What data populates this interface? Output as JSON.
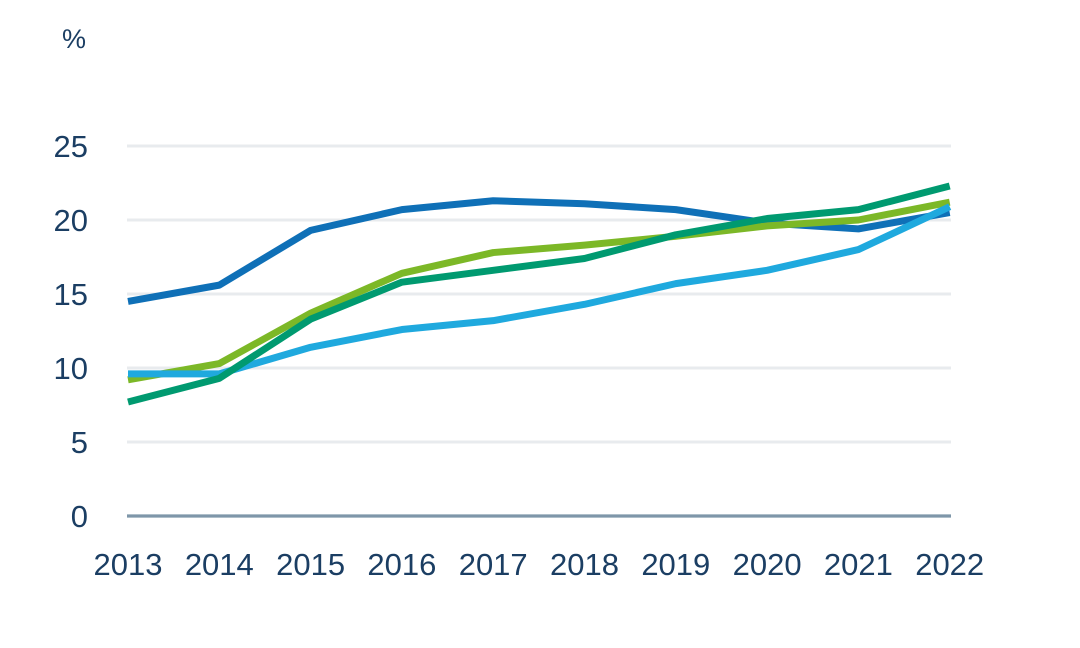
{
  "colors": {
    "axis_label": "#1b3e63",
    "gridline": "#e8ebee",
    "baseline": "#7e96a9",
    "background": "#ffffff"
  },
  "chart_data": {
    "type": "line",
    "title": "",
    "xlabel": "",
    "ylabel": "%",
    "x": [
      "2013",
      "2014",
      "2015",
      "2016",
      "2017",
      "2018",
      "2019",
      "2020",
      "2021",
      "2022"
    ],
    "yticks": [
      0,
      5,
      10,
      15,
      20,
      25
    ],
    "ylim": [
      0,
      27
    ],
    "grid": "horizontal",
    "legend": "none",
    "series": [
      {
        "name": "dark-blue",
        "color": "#0f70b7",
        "values": [
          14.5,
          15.6,
          19.3,
          20.7,
          21.3,
          21.1,
          20.7,
          19.8,
          19.4,
          20.5
        ]
      },
      {
        "name": "lime-green",
        "color": "#7cb827",
        "values": [
          9.2,
          10.3,
          13.7,
          16.4,
          17.8,
          18.3,
          18.9,
          19.6,
          20.0,
          21.2
        ]
      },
      {
        "name": "light-blue",
        "color": "#1fa9de",
        "values": [
          9.6,
          9.6,
          11.4,
          12.6,
          13.2,
          14.3,
          15.7,
          16.6,
          18.0,
          20.9
        ]
      },
      {
        "name": "dark-green",
        "color": "#009a70",
        "values": [
          7.7,
          9.3,
          13.3,
          15.8,
          16.6,
          17.4,
          19.0,
          20.1,
          20.7,
          22.3
        ]
      }
    ]
  }
}
